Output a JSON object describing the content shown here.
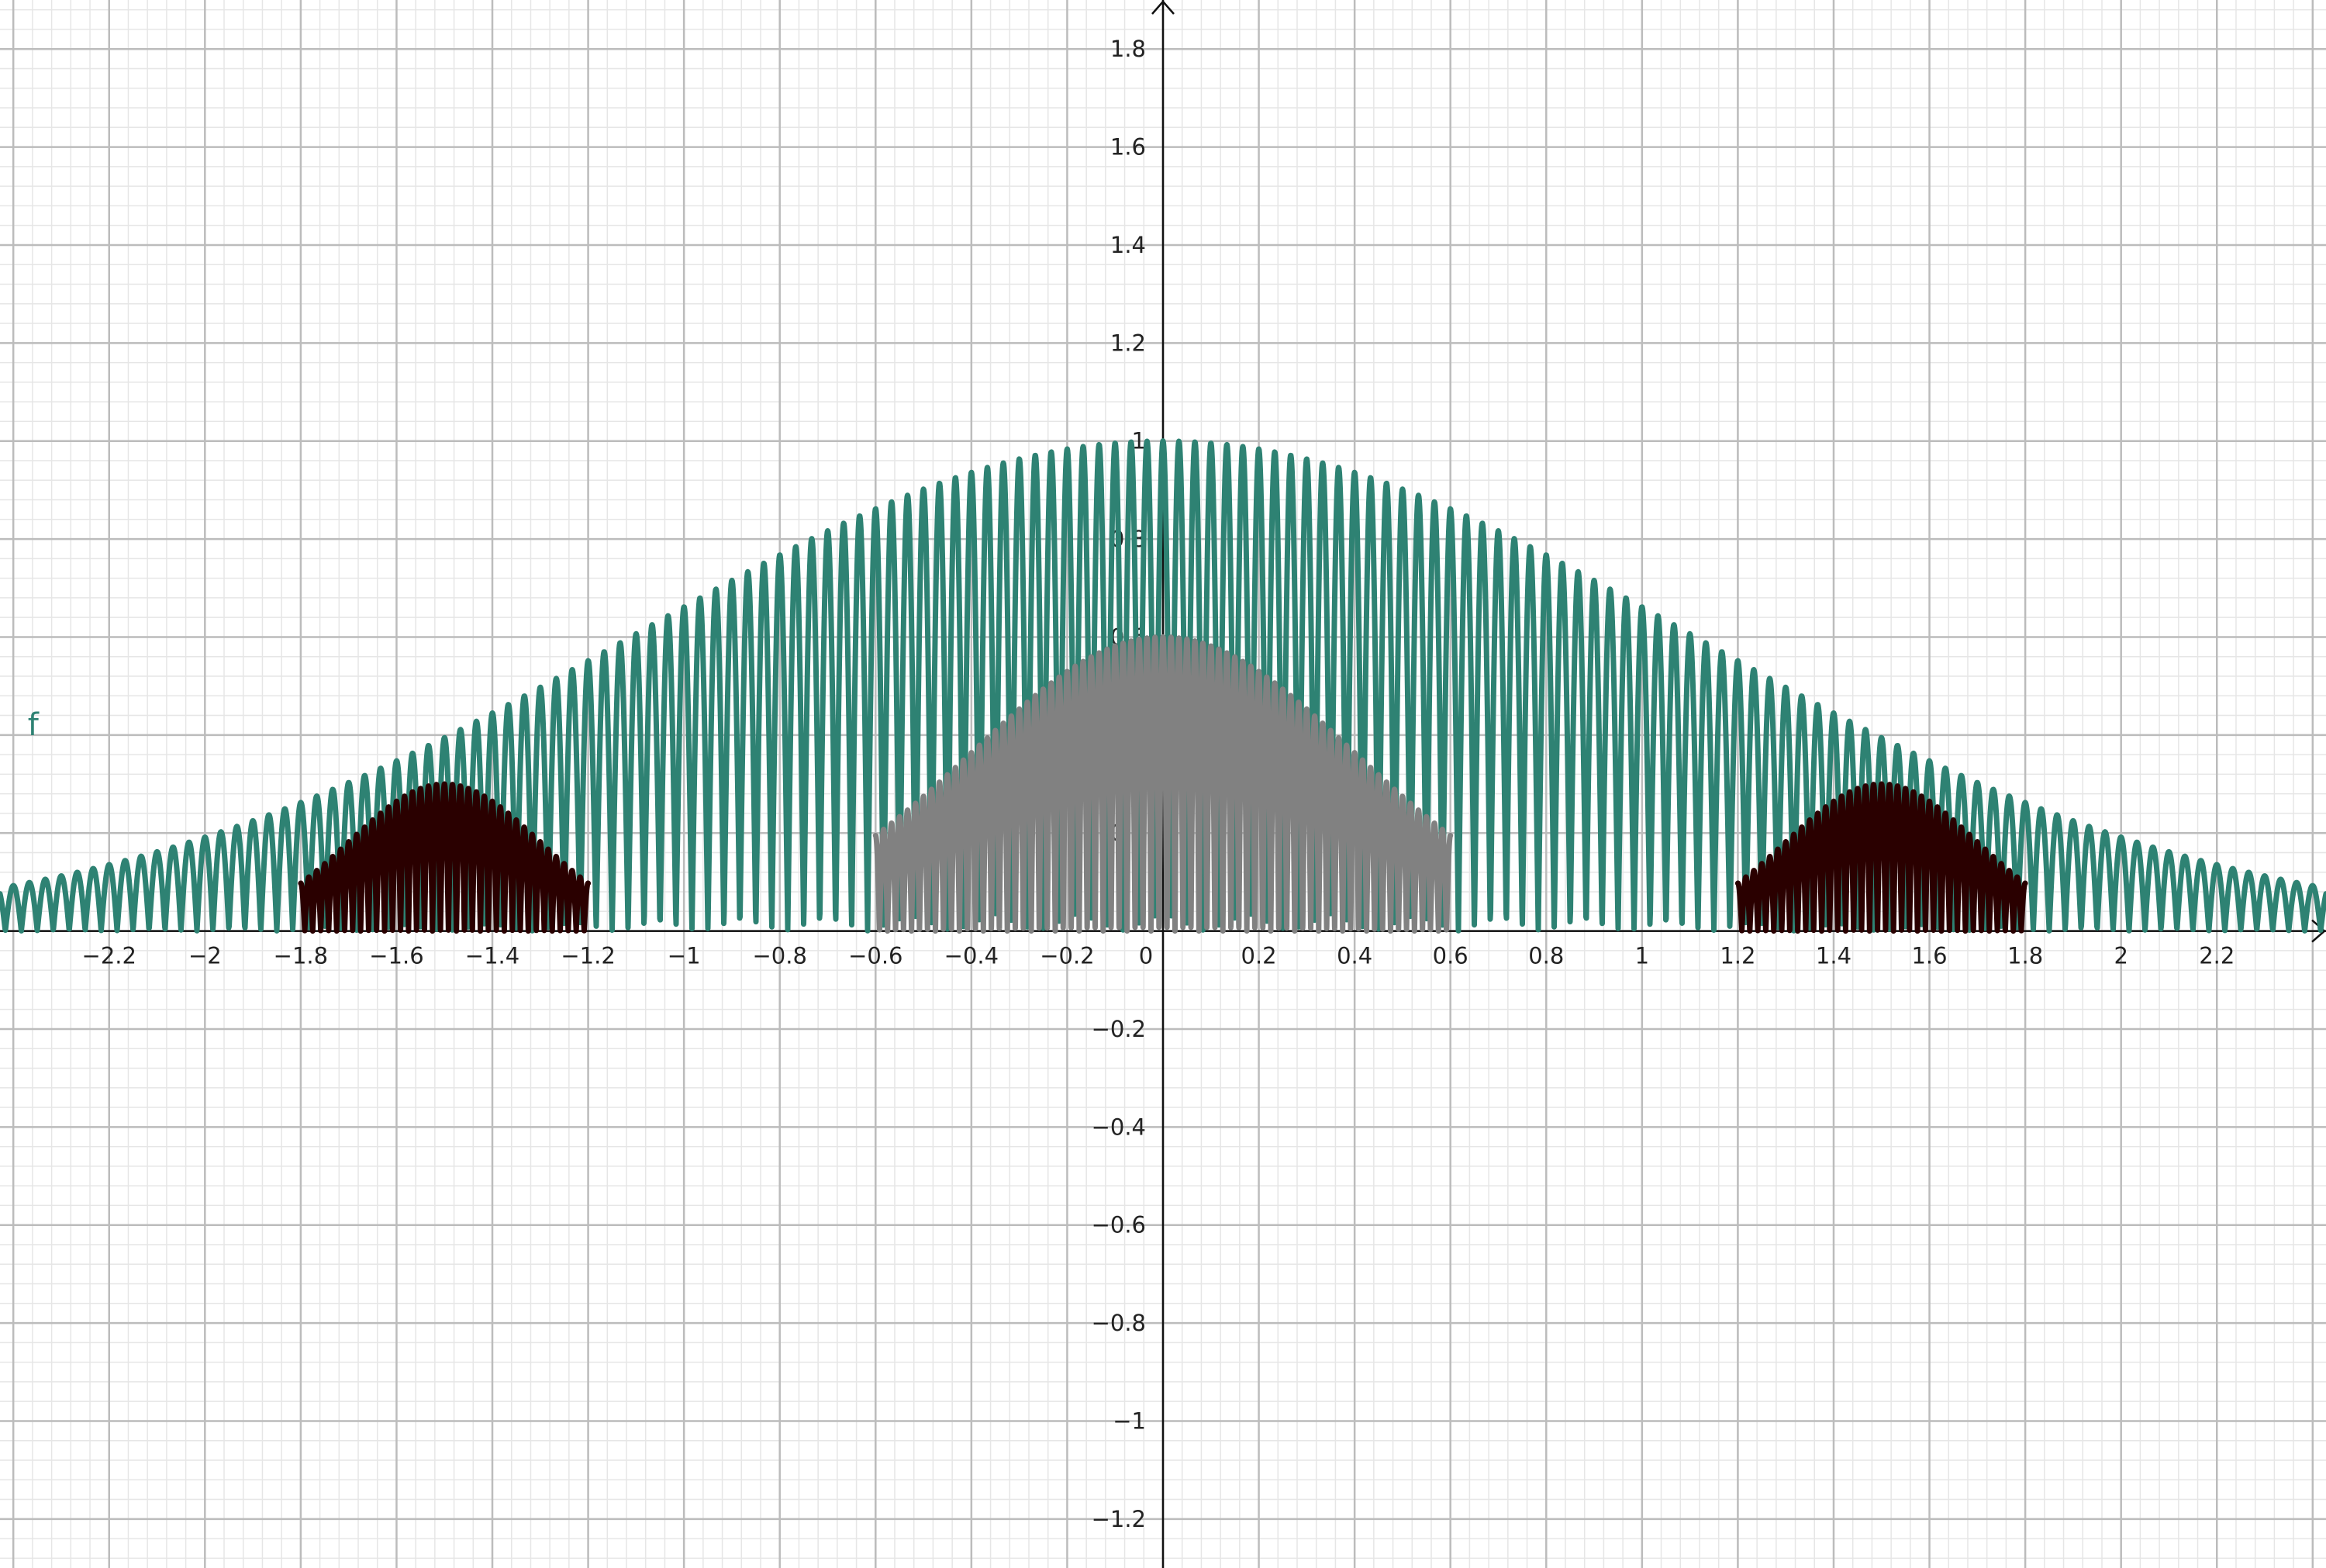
{
  "chart_data": {
    "type": "line",
    "xlim": [
      -2.4278,
      2.4278
    ],
    "ylim": [
      -1.3,
      1.9
    ],
    "grid": true,
    "major_step": 0.2,
    "minor_step": 0.04,
    "x_ticks": [
      "-2.2",
      "-2",
      "-1.8",
      "-1.6",
      "-1.4",
      "-1.2",
      "-1",
      "-0.8",
      "-0.6",
      "-0.4",
      "-0.2",
      "0",
      "0.2",
      "0.4",
      "0.6",
      "0.8",
      "1",
      "1.2",
      "1.4",
      "1.6",
      "1.8",
      "2",
      "2.2"
    ],
    "y_ticks": [
      "1.8",
      "1.6",
      "1.4",
      "1.2",
      "1",
      "0.8",
      "0.6",
      "0.4",
      "0.2",
      "-0.2",
      "-0.4",
      "-0.6",
      "-0.8",
      "-1",
      "-1.2"
    ],
    "colors": {
      "major_grid": "#bcbcbc",
      "minor_grid": "#e6e6e6",
      "axis": "#111111"
    },
    "series": [
      {
        "name": "f",
        "color": "#2e8273",
        "envelope": "gaussian",
        "peak": 1.0,
        "envelope_sigma": 1.1,
        "oscillation_frequency": 15,
        "domain": [
          -2.4278,
          2.4278
        ]
      },
      {
        "color": "#818181",
        "envelope": "gaussian",
        "peak": 0.6,
        "envelope_sigma": 0.4,
        "oscillation_frequency": 30,
        "domain": [
          -0.6,
          0.6
        ]
      },
      {
        "color": "#2a0000",
        "envelope": "gaussian",
        "peak": 0.3,
        "envelope_sigma": 0.2,
        "center": -1.5,
        "oscillation_frequency": 30,
        "domain": [
          -1.8,
          -1.2
        ]
      },
      {
        "color": "#2a0000",
        "envelope": "gaussian",
        "peak": 0.3,
        "envelope_sigma": 0.2,
        "center": 1.5,
        "oscillation_frequency": 30,
        "domain": [
          1.2,
          1.8
        ]
      }
    ]
  }
}
